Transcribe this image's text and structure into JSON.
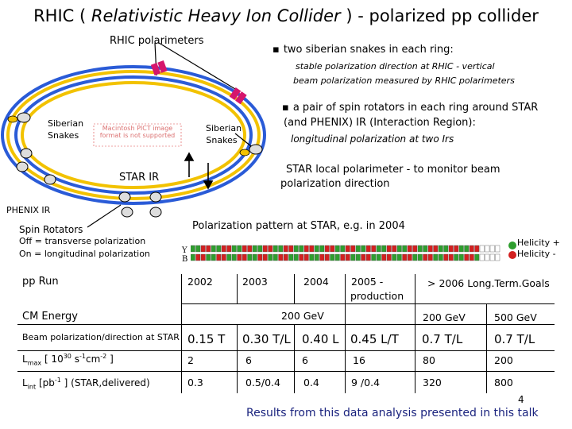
{
  "title": {
    "prefix": "RHIC  ( ",
    "italic": "Relativistic Heavy Ion Collider",
    "suffix": " ) - polarized pp collider"
  },
  "diagram": {
    "polarimeters_label": "RHIC polarimeters",
    "siberian_left": "Siberian Snakes",
    "siberian_right": "Siberian Snakes",
    "star_ir": "STAR IR",
    "phenix_ir": "PHENIX IR",
    "spin_rotators": "Spin Rotators",
    "off_line": "Off = transverse  polarization",
    "on_line": "On = longitudinal  polarization",
    "placeholder": "Macintosh PICT image format is not supported"
  },
  "notes": {
    "b1": "two siberian snakes in each ring:",
    "b1_sub1": "stable polarization direction at RHIC - vertical",
    "b1_sub2": "beam polarization measured by RHIC polarimeters",
    "b2_line1": "a pair of spin rotators in each ring around STAR",
    "b2_line2": "(and PHENIX) IR (Interaction Region):",
    "b2_sub": "longitudinal polarization at two Irs",
    "b3_line1": "STAR local polarimeter - to monitor beam",
    "b3_line2": "polarization direction"
  },
  "pattern": {
    "title": "Polarization pattern at STAR, e.g. in 2004",
    "y_label": "Y",
    "b_label": "B",
    "helicity_plus": "Helicity +",
    "helicity_minus": "Helicity -",
    "green": "#2e9e2e",
    "red": "#d32020"
  },
  "table": {
    "rows": {
      "run": "pp Run",
      "energy": "CM Energy",
      "beampol": "Beam polarization/direction at STAR",
      "lmax_prefix": "L",
      "lmax_sub": "max",
      "lmax_suffix": " [  10",
      "lmax_exp": "30",
      "lmax_units": " s",
      "lmax_units_exp": "-1",
      "lmax_units2": "cm",
      "lmax_units2_exp": "-2",
      "lmax_close": " ]",
      "lint_prefix": "L",
      "lint_sub": "int",
      "lint_suffix": "  [pb",
      "lint_exp": "-1",
      "lint_close": " ] (STAR,delivered)"
    },
    "years": {
      "y2002": "2002",
      "y2003": "2003",
      "y2004": "2004",
      "y2005_line1": "2005    -",
      "y2005_line2": "production",
      "y2006": "> 2006 Long.Term.Goals"
    },
    "energy": {
      "mid": "200 GeV",
      "lt1": "200 GeV",
      "lt2": "500 GeV"
    },
    "beampol": [
      "0.15 T",
      "0.30 T/L",
      "0.40 L",
      "0.45 L/T",
      "0.7 T/L",
      "0.7 T/L"
    ],
    "lmax": [
      "2",
      "6",
      "6",
      "16",
      "80",
      "200"
    ],
    "lint": [
      "0.3",
      "0.5/0.4",
      "0.4",
      "9 /0.4",
      "320",
      "800"
    ]
  },
  "footer": {
    "page_number": "4",
    "note": "Results from this data analysis presented in this talk"
  }
}
